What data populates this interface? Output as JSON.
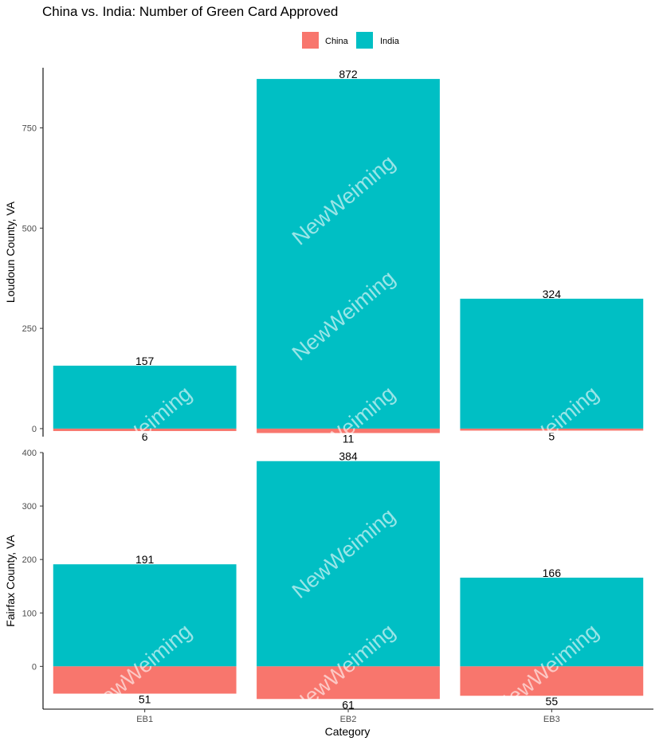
{
  "chart_data": {
    "type": "bar",
    "title": "China vs. India: Number of Green Card Approved",
    "xlabel": "Category",
    "categories": [
      "EB1",
      "EB2",
      "EB3"
    ],
    "legend": {
      "placement": "top",
      "entries": [
        {
          "name": "China",
          "color": "#F8766D"
        },
        {
          "name": "India",
          "color": "#00BFC4"
        }
      ]
    },
    "watermark": "NewWeiming",
    "panels": [
      {
        "ylabel": "Loudoun County, VA",
        "ylim": [
          -20,
          900
        ],
        "yticks": [
          0,
          250,
          500,
          750
        ],
        "series": [
          {
            "name": "China",
            "values": [
              6,
              11,
              5
            ],
            "direction": "negative"
          },
          {
            "name": "India",
            "values": [
              157,
              872,
              324
            ],
            "direction": "positive"
          }
        ]
      },
      {
        "ylabel": "Fairfax County, VA",
        "ylim": [
          -80,
          400
        ],
        "yticks": [
          0,
          100,
          200,
          300,
          400
        ],
        "series": [
          {
            "name": "China",
            "values": [
              51,
              61,
              55
            ],
            "direction": "negative"
          },
          {
            "name": "India",
            "values": [
              191,
              384,
              166
            ],
            "direction": "positive"
          }
        ]
      }
    ]
  }
}
